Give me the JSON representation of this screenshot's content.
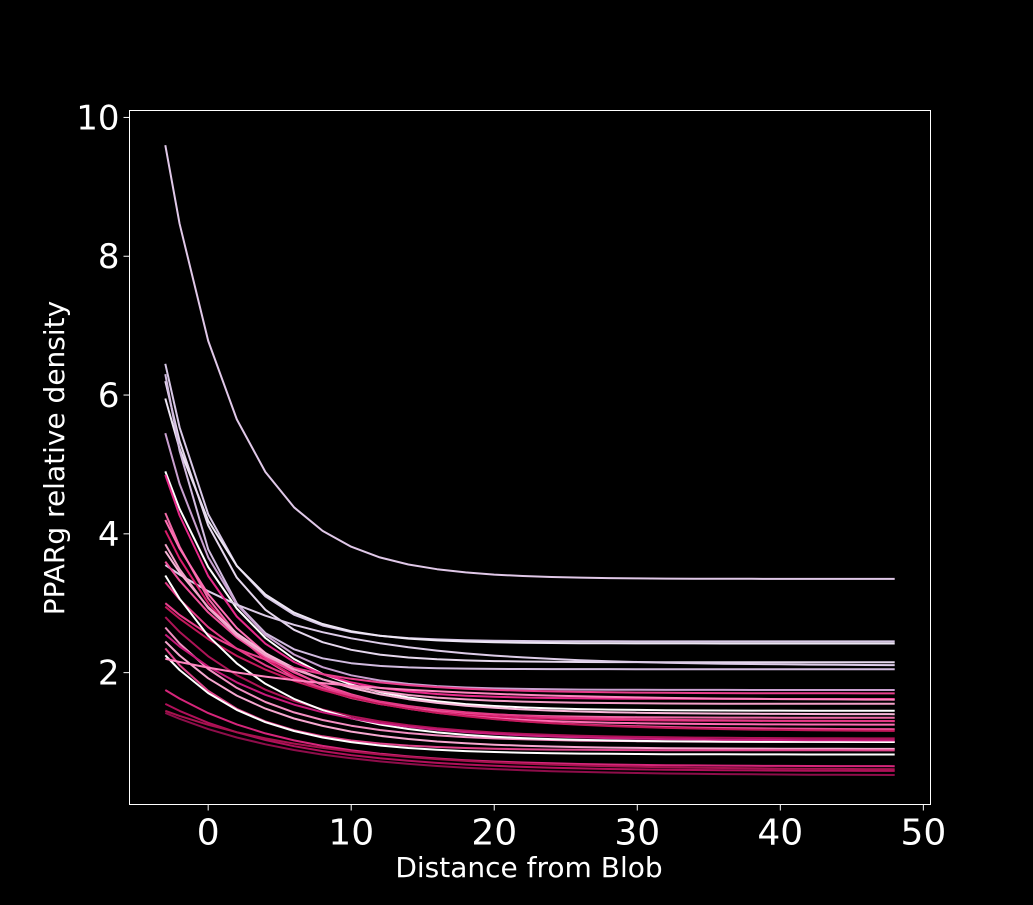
{
  "chart_data": {
    "type": "line",
    "title": "",
    "xlabel": "Distance from Blob",
    "ylabel": "PPARg relative density",
    "xlim": [
      -5.5,
      50.5
    ],
    "ylim": [
      0.1,
      10.1
    ],
    "xticks": [
      0,
      10,
      20,
      30,
      40,
      50
    ],
    "yticks": [
      2,
      4,
      6,
      8,
      10
    ],
    "grid": false,
    "legend": "none",
    "colors": {
      "background": "#000000",
      "axes": "#ffffff",
      "text": "#ffffff"
    },
    "x": [
      -3,
      -2,
      0,
      2,
      4,
      6,
      8,
      10,
      12,
      14,
      16,
      18,
      20,
      22,
      24,
      26,
      28,
      30,
      32,
      34,
      36,
      38,
      40,
      42,
      44,
      46,
      48
    ],
    "series": [
      {
        "color": "#e0c8e8",
        "start": 9.6,
        "end": 3.35,
        "rate": 0.2
      },
      {
        "color": "#d8c8e6",
        "start": 6.45,
        "end": 2.45,
        "rate": 0.26
      },
      {
        "color": "#ede6f4",
        "start": 5.95,
        "end": 2.42,
        "rate": 0.23
      },
      {
        "color": "#e6d8ee",
        "start": 6.2,
        "end": 2.15,
        "rate": 0.24
      },
      {
        "color": "#d2bce0",
        "start": 6.3,
        "end": 2.05,
        "rate": 0.3
      },
      {
        "color": "#c9a0d0",
        "start": 5.45,
        "end": 1.75,
        "rate": 0.22
      },
      {
        "color": "#ffffff",
        "start": 4.9,
        "end": 1.45,
        "rate": 0.17
      },
      {
        "color": "#ddcce8",
        "start": 3.55,
        "end": 2.1,
        "rate": 0.1
      },
      {
        "color": "#e7298a",
        "start": 4.85,
        "end": 1.62,
        "rate": 0.2
      },
      {
        "color": "#f06aa8",
        "start": 4.3,
        "end": 1.35,
        "rate": 0.18
      },
      {
        "color": "#d81b6a",
        "start": 4.05,
        "end": 1.3,
        "rate": 0.16
      },
      {
        "color": "#ff6eb4",
        "start": 4.2,
        "end": 1.25,
        "rate": 0.15
      },
      {
        "color": "#f8b6d8",
        "start": 3.75,
        "end": 1.4,
        "rate": 0.14
      },
      {
        "color": "#ee4f9a",
        "start": 3.6,
        "end": 1.18,
        "rate": 0.12
      },
      {
        "color": "#c2185b",
        "start": 2.95,
        "end": 1.15,
        "rate": 0.1
      },
      {
        "color": "#e83e8c",
        "start": 3.0,
        "end": 1.7,
        "rate": 0.14
      },
      {
        "color": "#ad1457",
        "start": 2.8,
        "end": 1.05,
        "rate": 0.13
      },
      {
        "color": "#f48fc2",
        "start": 2.65,
        "end": 1.0,
        "rate": 0.15
      },
      {
        "color": "#f7a8d0",
        "start": 2.45,
        "end": 0.9,
        "rate": 0.14
      },
      {
        "color": "#e1458d",
        "start": 2.35,
        "end": 0.88,
        "rate": 0.18
      },
      {
        "color": "#ffffff",
        "start": 2.25,
        "end": 0.82,
        "rate": 0.16
      },
      {
        "color": "#d6267b",
        "start": 1.75,
        "end": 0.65,
        "rate": 0.12
      },
      {
        "color": "#b0105a",
        "start": 1.55,
        "end": 0.58,
        "rate": 0.11
      },
      {
        "color": "#8e0d4a",
        "start": 1.42,
        "end": 0.52,
        "rate": 0.1
      },
      {
        "color": "#f2a0c8",
        "start": 3.85,
        "end": 1.55,
        "rate": 0.17
      },
      {
        "color": "#e33a86",
        "start": 3.3,
        "end": 1.3,
        "rate": 0.13
      },
      {
        "color": "#ffffff",
        "start": 3.4,
        "end": 1.0,
        "rate": 0.15
      },
      {
        "color": "#c8197a",
        "start": 2.55,
        "end": 1.02,
        "rate": 0.12
      },
      {
        "color": "#ff85c0",
        "start": 2.2,
        "end": 1.6,
        "rate": 0.08
      },
      {
        "color": "#a8124f",
        "start": 1.45,
        "end": 0.6,
        "rate": 0.09
      }
    ]
  }
}
